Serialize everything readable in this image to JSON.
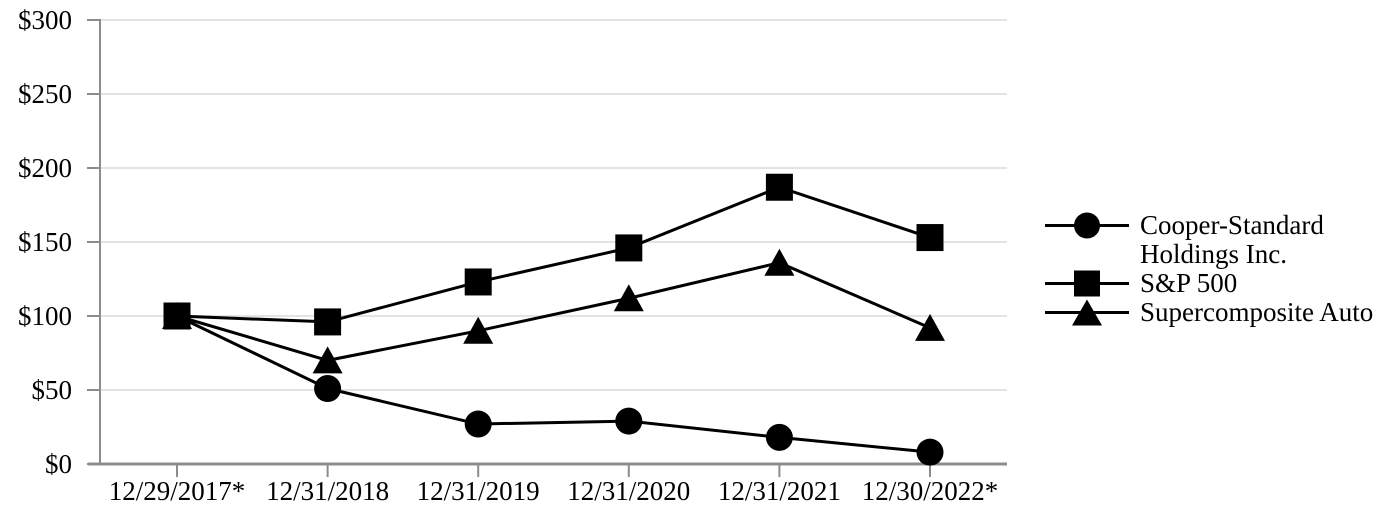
{
  "chart_data": {
    "type": "line",
    "title": "",
    "xlabel": "",
    "ylabel": "",
    "categories": [
      "12/29/2017*",
      "12/31/2018",
      "12/31/2019",
      "12/31/2020",
      "12/31/2021",
      "12/30/2022*"
    ],
    "series": [
      {
        "name": "Cooper-Standard Holdings Inc.",
        "marker": "circle",
        "values": [
          100,
          51,
          27,
          29,
          18,
          8
        ]
      },
      {
        "name": "S&P 500",
        "marker": "square",
        "values": [
          100,
          96,
          123,
          146,
          187,
          153
        ]
      },
      {
        "name": "Supercomposite Auto",
        "marker": "triangle",
        "values": [
          100,
          70,
          90,
          112,
          136,
          92
        ]
      }
    ],
    "y_ticks": [
      "$0",
      "$50",
      "$100",
      "$150",
      "$200",
      "$250",
      "$300"
    ],
    "ylim": [
      0,
      300
    ],
    "y_tick_step": 50,
    "grid": true,
    "legend_position": "right",
    "colors": {
      "series": "#000000",
      "axis": "#8c8c8c",
      "gridline": "#e3e3e3",
      "background": "#ffffff",
      "text": "#000000"
    }
  }
}
